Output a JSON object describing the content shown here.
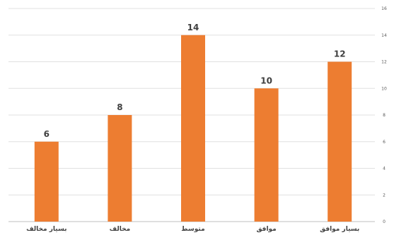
{
  "chart_data": {
    "type": "bar",
    "categories": [
      "بسيار مخالف",
      "مخالف",
      "متوسط",
      "موافق",
      "بسيار موافق"
    ],
    "values": [
      6,
      8,
      14,
      10,
      12
    ],
    "title": "",
    "xlabel": "",
    "ylabel": "",
    "ylim": [
      0,
      16
    ],
    "yticks": [
      "0",
      "2",
      "4",
      "6",
      "8",
      "10",
      "12",
      "14",
      "16"
    ],
    "y_axis_side": "right",
    "grid": true,
    "bar_color": "#ED7D31",
    "data_labels": [
      "6",
      "8",
      "14",
      "10",
      "12"
    ]
  }
}
